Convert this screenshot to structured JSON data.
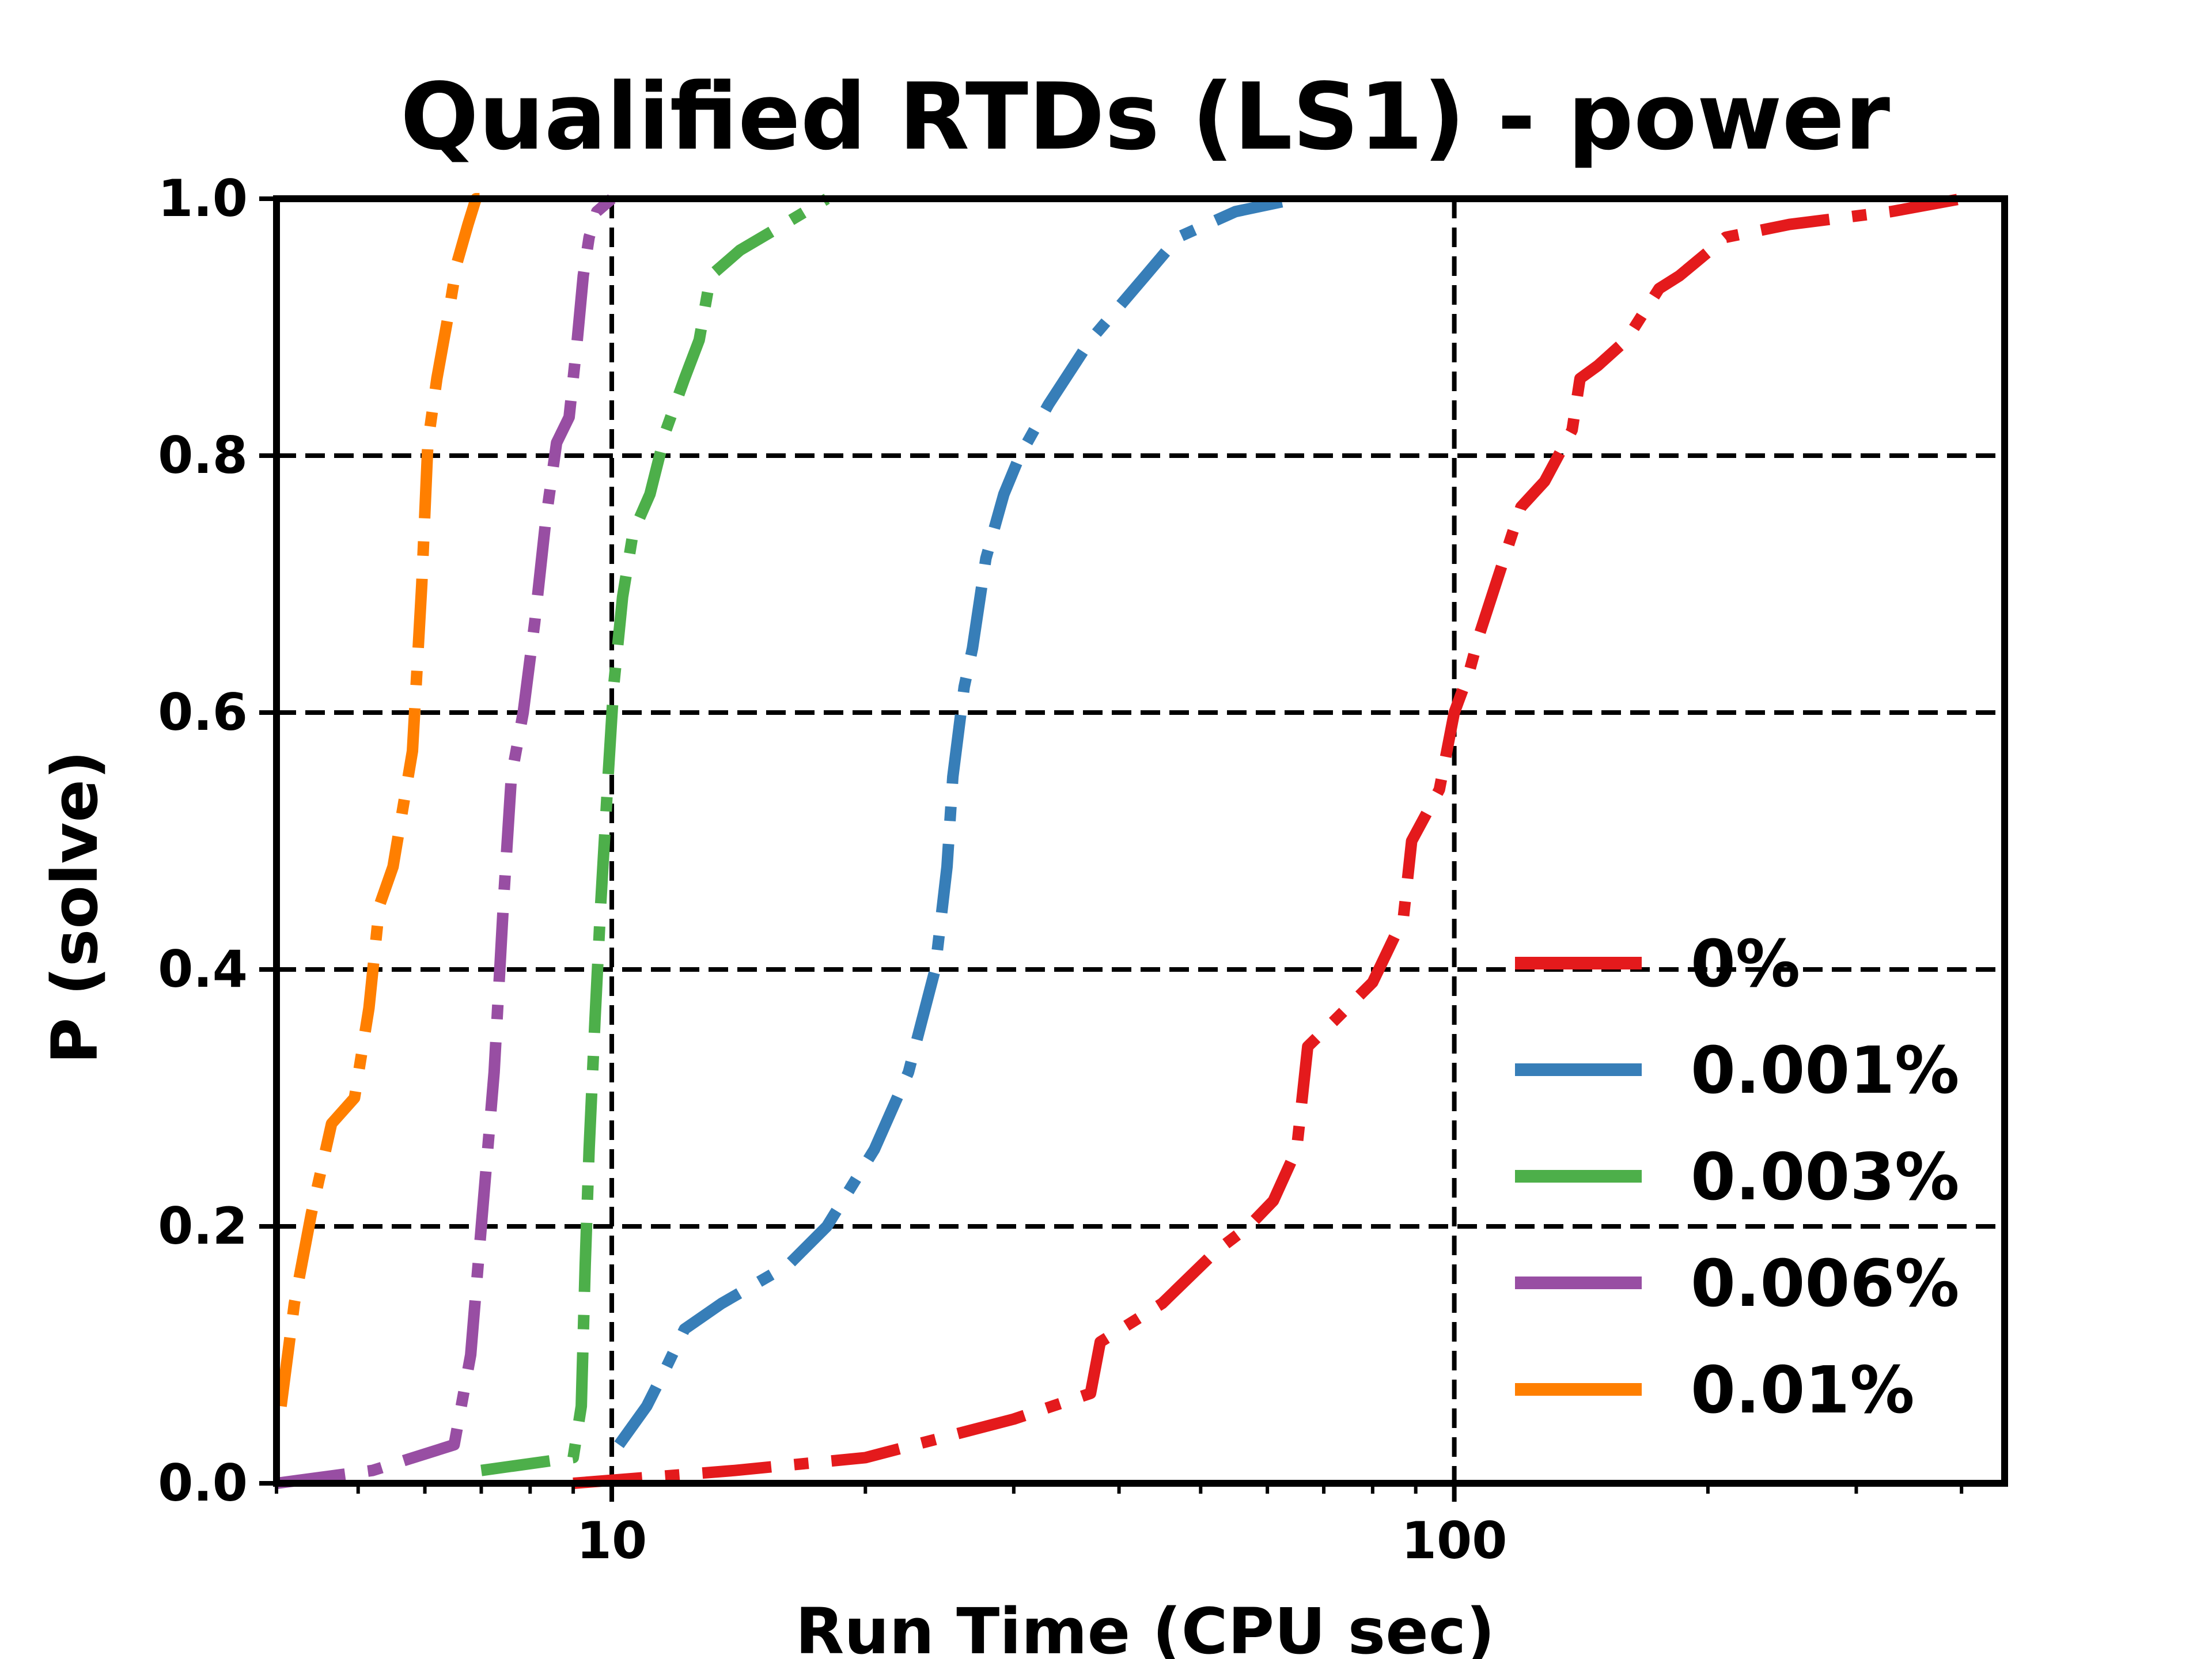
{
  "chart_data": {
    "type": "line",
    "title": "Qualified RTDs (LS1) - power",
    "xlabel": "Run Time (CPU sec)",
    "ylabel": "P (solve)",
    "xscale": "log",
    "xlim": [
      4,
      450
    ],
    "ylim": [
      0,
      1
    ],
    "xticks": [
      {
        "value": 10,
        "label": "10"
      },
      {
        "value": 100,
        "label": "100"
      }
    ],
    "yticks": [
      {
        "value": 0.0,
        "label": "0.0"
      },
      {
        "value": 0.2,
        "label": "0.2"
      },
      {
        "value": 0.4,
        "label": "0.4"
      },
      {
        "value": 0.6,
        "label": "0.6"
      },
      {
        "value": 0.8,
        "label": "0.8"
      },
      {
        "value": 1.0,
        "label": "1.0"
      }
    ],
    "grid": true,
    "legend_position": "lower-right",
    "line_style": "dash-dot",
    "series": [
      {
        "name": "0%",
        "color": "#e41a1c",
        "x": [
          9,
          14,
          20,
          30,
          37,
          38,
          45,
          52,
          57,
          61,
          65,
          67,
          72,
          80,
          87,
          89,
          96,
          100,
          104,
          107,
          112,
          120,
          128,
          138,
          141,
          148,
          160,
          175,
          185,
          193,
          210,
          250,
          330,
          400
        ],
        "y": [
          0.0,
          0.01,
          0.02,
          0.05,
          0.07,
          0.11,
          0.14,
          0.18,
          0.2,
          0.22,
          0.26,
          0.34,
          0.36,
          0.39,
          0.44,
          0.5,
          0.54,
          0.6,
          0.63,
          0.66,
          0.7,
          0.76,
          0.78,
          0.82,
          0.86,
          0.87,
          0.89,
          0.93,
          0.94,
          0.95,
          0.97,
          0.98,
          0.99,
          1.0
        ]
      },
      {
        "name": "0.001%",
        "color": "#377eb8",
        "x": [
          10.2,
          11.0,
          11.6,
          12.2,
          13.5,
          16.2,
          18.0,
          20.5,
          22.5,
          24.2,
          25.0,
          25.4,
          26.2,
          26.8,
          27.8,
          29.2,
          30.5,
          33.0,
          37.0,
          43.0,
          47.0,
          55.0,
          65.0
        ],
        "y": [
          0.03,
          0.06,
          0.09,
          0.12,
          0.14,
          0.17,
          0.2,
          0.26,
          0.32,
          0.4,
          0.48,
          0.55,
          0.62,
          0.65,
          0.72,
          0.77,
          0.8,
          0.84,
          0.89,
          0.94,
          0.97,
          0.99,
          1.0
        ]
      },
      {
        "name": "0.003%",
        "color": "#4daf4a",
        "x": [
          7.0,
          9.0,
          9.2,
          9.3,
          9.4,
          9.55,
          9.7,
          9.9,
          10.05,
          10.3,
          10.6,
          11.1,
          11.6,
          12.2,
          12.7,
          13.1,
          14.2,
          16.0,
          18.0
        ],
        "y": [
          0.01,
          0.02,
          0.06,
          0.17,
          0.26,
          0.36,
          0.45,
          0.55,
          0.62,
          0.69,
          0.74,
          0.77,
          0.82,
          0.86,
          0.89,
          0.94,
          0.96,
          0.98,
          1.0
        ]
      },
      {
        "name": "0.006%",
        "color": "#984ea3",
        "x": [
          4.0,
          5.2,
          6.5,
          6.8,
          7.0,
          7.25,
          7.45,
          7.6,
          7.85,
          8.1,
          8.35,
          8.6,
          8.9,
          9.1,
          9.25,
          9.4,
          9.6,
          10.0
        ],
        "y": [
          0.0,
          0.01,
          0.03,
          0.1,
          0.2,
          0.32,
          0.46,
          0.55,
          0.6,
          0.67,
          0.75,
          0.81,
          0.83,
          0.89,
          0.94,
          0.97,
          0.99,
          1.0
        ]
      },
      {
        "name": "0.01%",
        "color": "#ff7f00",
        "x": [
          4.05,
          4.2,
          4.4,
          4.65,
          4.95,
          5.15,
          5.3,
          5.5,
          5.8,
          5.95,
          6.05,
          6.2,
          6.4,
          6.55,
          6.75,
          6.9,
          7.3
        ],
        "y": [
          0.06,
          0.14,
          0.21,
          0.28,
          0.3,
          0.37,
          0.45,
          0.48,
          0.57,
          0.7,
          0.81,
          0.86,
          0.91,
          0.95,
          0.98,
          1.0,
          1.0
        ]
      }
    ]
  }
}
